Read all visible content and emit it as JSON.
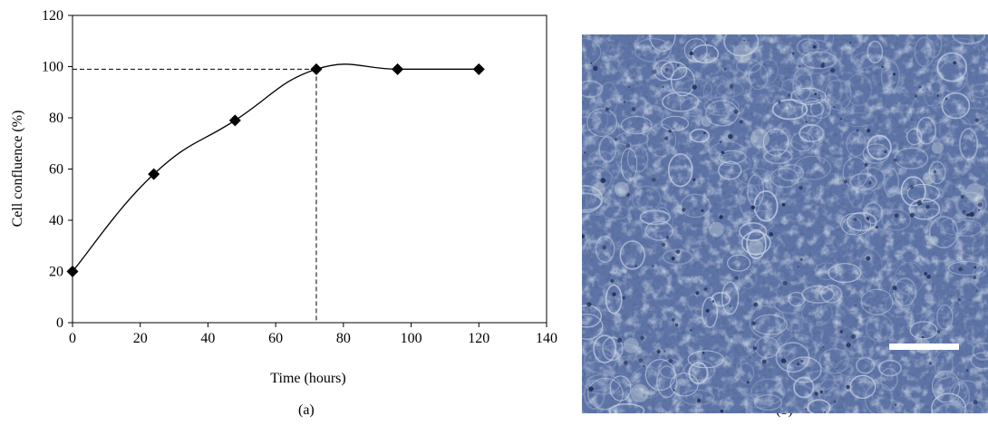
{
  "chart_data": {
    "type": "line",
    "title": "",
    "xlabel": "Time (hours)",
    "ylabel": "Cell confluence (%)",
    "xlim": [
      0,
      140
    ],
    "ylim": [
      0,
      120
    ],
    "xticks": [
      0,
      20,
      40,
      60,
      80,
      100,
      120,
      140
    ],
    "yticks": [
      0,
      20,
      40,
      60,
      80,
      100,
      120
    ],
    "x": [
      0,
      24,
      48,
      72,
      96,
      120
    ],
    "y": [
      20,
      58,
      79,
      99,
      99,
      99
    ],
    "reference": {
      "x": 72,
      "y": 99,
      "style": "dashed"
    },
    "grid": false,
    "legend": "none",
    "marker": "diamond",
    "line_color": "#000000"
  },
  "panel_labels": {
    "a": "(a)",
    "b": "(b)"
  },
  "micrograph": {
    "description_free": true,
    "base_color": "#5e74a6",
    "scale_bar_color": "#ffffff"
  }
}
